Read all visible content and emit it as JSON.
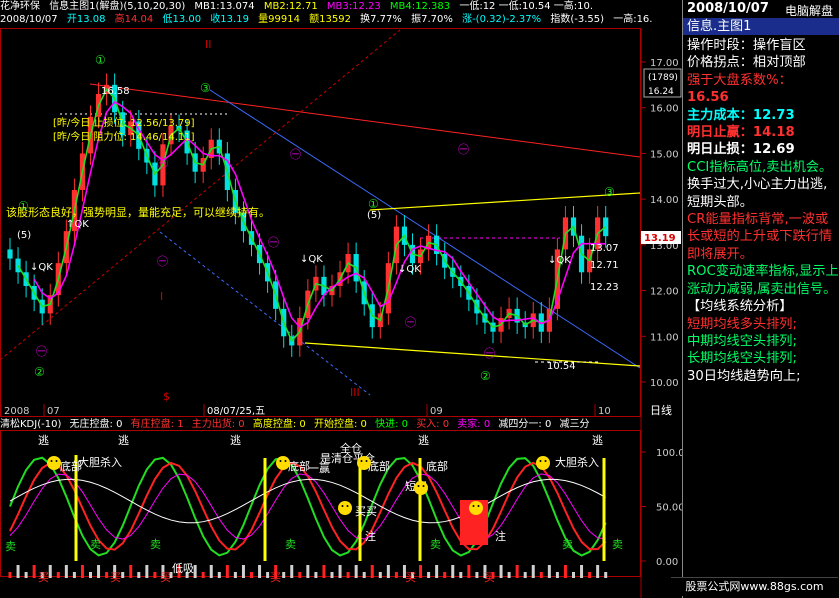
{
  "header": {
    "stock_name": "花净环保",
    "chart_title": "信息主图1(解盘)(5,10,20,30)",
    "ma1": "MB1:13.074",
    "ma2": "MB2:12.71",
    "ma3": "MB3:12.23",
    "ma4": "MB4:12.383",
    "tail": "一低:12 一低:10.54 一高:10.",
    "date": "2008/10/07",
    "open": "开13.08",
    "high": "高14.04",
    "low": "低13.00",
    "close": "收13.19",
    "volume": "量99914",
    "amount": "额13592",
    "turnover": "换7.77%",
    "amplitude": "振7.70%",
    "change": "涨-(0.32)-2.37%",
    "index": "指数(-3.55)",
    "idx_tail": "一高:16."
  },
  "colors": {
    "up": "#ff3030",
    "down": "#00e0e0",
    "green": "#22dd22",
    "magenta": "#ff00ff",
    "yellow": "#ffff00",
    "blue": "#3b6bff",
    "label_red": "#ff2222",
    "label_cyan": "#00ffff"
  },
  "axis": {
    "price_ticks": [
      "17.00",
      "16.00",
      "15.00",
      "14.00",
      "13.00",
      "12.00",
      "11.00",
      "10.00"
    ],
    "current_price_tag": "13.19",
    "box_top": "(1789)",
    "box_bottom": "16.24",
    "date_labels": [
      "2008",
      "07",
      "08/07/25,五",
      "09",
      "10"
    ],
    "date_unit": "日线",
    "ind_ticks": [
      "100.00",
      "50.00",
      "0.00"
    ]
  },
  "annotations": {
    "hi_label": "16.58",
    "resist_a": "[昨/今日 止损位: 12.56/13.79]",
    "resist_b": "[昨/今日 阻力位: 14.46/14.11]",
    "comment": "该股形态良好，强势明显，量能充足，可以继续持有。",
    "qk1": "↑QK",
    "qk2": "↓QK",
    "qk3": "↓QK",
    "qk4": "↓QK",
    "qk5": "↓QK",
    "low_label": "10.54",
    "r1": "13.07",
    "r2": "12.71",
    "r3": "12.23",
    "wave_I": "I",
    "wave_II": "II",
    "wave_III": "III",
    "c1": "①",
    "c2": "②",
    "c3": "③",
    "c5": "(5)",
    "cm": "㊀",
    "cs": "$"
  },
  "indicator": {
    "name": "清松KDJ(-10)",
    "items": [
      "无庄控盘: 0",
      "有庄控盘: 1",
      "主力出货: 0",
      "高度控盘: 0",
      "开始控盘: 0",
      "快进: 0",
      "买入: 0",
      "卖家: 0",
      "减四分一: 0",
      "减三分"
    ],
    "labels": {
      "escape": "逃",
      "bottom": "底部",
      "buy": "买",
      "sell": "卖",
      "short_buy": "短买",
      "low_buy": "低吸",
      "big_profit_in": "大胆杀入",
      "strong_buy": "买买",
      "add": "注",
      "one_profit": "一赢",
      "full_out": "全仓",
      "open_close": "是清仓平仓"
    }
  },
  "panel": {
    "date": "2008/10/07",
    "mode": "电脑解盘",
    "title": "信息.主图1",
    "rows": [
      {
        "text": "操作时段：操作盲区",
        "color": "#ffffff"
      },
      {
        "text": "价格拐点：相对顶部",
        "color": "#ffffff"
      },
      {
        "text": "强于大盘系数%：",
        "color": "#ff3030"
      },
      {
        "text": "16.56",
        "color": "#ff3030",
        "bold": true
      },
      {
        "text": "主力成本：12.73",
        "color": "#00ffff",
        "bold": true
      },
      {
        "text": "明日止赢：14.18",
        "color": "#ff3030",
        "bold": true
      },
      {
        "text": "明日止损：12.69",
        "color": "#ffffff",
        "bold": true
      },
      {
        "text": "CCI指标高位,卖出机会。",
        "color": "#00ff66"
      },
      {
        "text": "换手过大,小心主力出逃,短期头部。",
        "color": "#ffffff"
      },
      {
        "text": "CR能量指标背常,一波或长或短的上升或下跌行情即将展开。",
        "color": "#ff3030"
      },
      {
        "text": "ROC变动速率指标,显示上涨动力减弱,属卖出信号。",
        "color": "#00ff66"
      },
      {
        "text": "【均线系统分析】",
        "color": "#ffffff"
      },
      {
        "text": "短期均线多头排列;",
        "color": "#ff3030"
      },
      {
        "text": "中期均线空头排列;",
        "color": "#00ff66"
      },
      {
        "text": "长期均线空头排列;",
        "color": "#00ff66"
      },
      {
        "text": "30日均线趋势向上;",
        "color": "#ffffff"
      }
    ]
  },
  "footer": "股票公式网www.88gs.com"
}
